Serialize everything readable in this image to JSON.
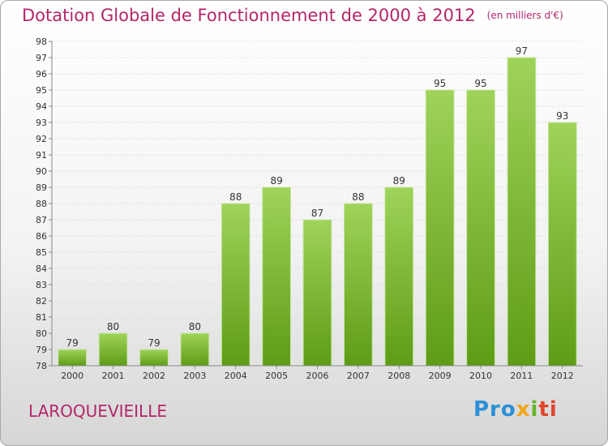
{
  "title": "Dotation Globale de Fonctionnement de 2000 à 2012",
  "unit": "(en milliers d'€)",
  "commune": "LAROQUEVIEILLE",
  "logo": {
    "part1": "Pro",
    "part2": "x",
    "part3": "i",
    "part4": "ti"
  },
  "colors": {
    "bar_light": "#9fd35a",
    "bar_dark": "#5e9c16",
    "title": "#b3266a"
  },
  "chart_data": {
    "type": "bar",
    "title": "Dotation Globale de Fonctionnement de 2000 à 2012",
    "categories": [
      "2000",
      "2001",
      "2002",
      "2003",
      "2004",
      "2005",
      "2006",
      "2007",
      "2008",
      "2009",
      "2010",
      "2011",
      "2012"
    ],
    "values": [
      79,
      80,
      79,
      80,
      88,
      89,
      87,
      88,
      89,
      95,
      95,
      97,
      93
    ],
    "ylim": [
      78,
      98
    ],
    "yticks": [
      78,
      79,
      80,
      81,
      82,
      83,
      84,
      85,
      86,
      87,
      88,
      89,
      90,
      91,
      92,
      93,
      94,
      95,
      96,
      97,
      98
    ],
    "grid": true
  }
}
